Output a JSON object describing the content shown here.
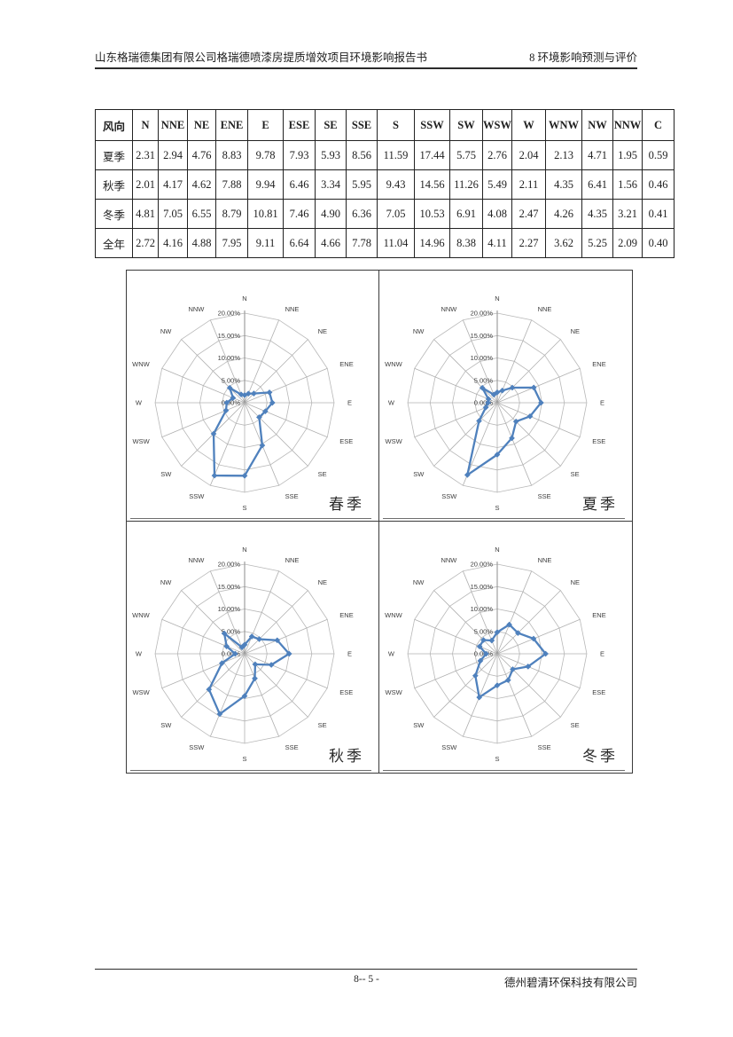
{
  "header": {
    "left": "山东格瑞德集团有限公司格瑞德喷漆房提质增效项目环境影响报告书",
    "right": "8 环境影响预测与评价"
  },
  "footer": {
    "page": "8-- 5 -",
    "company": "德州碧清环保科技有限公司"
  },
  "table": {
    "corner": "风向",
    "columns": [
      "N",
      "NNE",
      "NE",
      "ENE",
      "E",
      "ESE",
      "SE",
      "SSE",
      "S",
      "SSW",
      "SW",
      "WSW",
      "W",
      "WNW",
      "NW",
      "NNW",
      "C"
    ],
    "rows": [
      {
        "label": "夏季",
        "values": [
          "2.31",
          "2.94",
          "4.76",
          "8.83",
          "9.78",
          "7.93",
          "5.93",
          "8.56",
          "11.59",
          "17.44",
          "5.75",
          "2.76",
          "2.04",
          "2.13",
          "4.71",
          "1.95",
          "0.59"
        ]
      },
      {
        "label": "秋季",
        "values": [
          "2.01",
          "4.17",
          "4.62",
          "7.88",
          "9.94",
          "6.46",
          "3.34",
          "5.95",
          "9.43",
          "14.56",
          "11.26",
          "5.49",
          "2.11",
          "4.35",
          "6.41",
          "1.56",
          "0.46"
        ]
      },
      {
        "label": "冬季",
        "values": [
          "4.81",
          "7.05",
          "6.55",
          "8.79",
          "10.81",
          "7.46",
          "4.90",
          "6.36",
          "7.05",
          "10.53",
          "6.91",
          "4.08",
          "2.47",
          "4.26",
          "4.35",
          "3.21",
          "0.41"
        ]
      },
      {
        "label": "全年",
        "values": [
          "2.72",
          "4.16",
          "4.88",
          "7.95",
          "9.11",
          "6.64",
          "4.66",
          "7.78",
          "11.04",
          "14.96",
          "8.38",
          "4.11",
          "2.27",
          "3.62",
          "5.25",
          "2.09",
          "0.40"
        ]
      }
    ]
  },
  "chart_data": [
    {
      "type": "radar",
      "title": "春季",
      "categories": [
        "N",
        "NNE",
        "NE",
        "ENE",
        "E",
        "ESE",
        "SE",
        "SSE",
        "S",
        "SSW",
        "SW",
        "WSW",
        "W",
        "WNW",
        "NW",
        "NNW"
      ],
      "values": [
        1.7,
        2.2,
        2.9,
        6.0,
        6.2,
        5.0,
        4.6,
        10.3,
        16.3,
        17.6,
        9.8,
        4.5,
        4.0,
        2.8,
        4.7,
        2.0
      ],
      "ring_labels": [
        "0.00%",
        "5.00%",
        "10.00%",
        "15.00%",
        "20.00%"
      ],
      "rmax": 20,
      "legend_position": "none",
      "grid": true
    },
    {
      "type": "radar",
      "title": "夏季",
      "categories": [
        "N",
        "NNE",
        "NE",
        "ENE",
        "E",
        "ESE",
        "SE",
        "SSE",
        "S",
        "SSW",
        "SW",
        "WSW",
        "W",
        "WNW",
        "NW",
        "NNW"
      ],
      "values": [
        2.31,
        2.94,
        4.76,
        8.83,
        9.78,
        7.93,
        5.93,
        8.56,
        11.59,
        17.44,
        5.75,
        2.76,
        2.04,
        2.13,
        4.71,
        1.95
      ],
      "ring_labels": [
        "0.00%",
        "5.00%",
        "10.00%",
        "15.00%",
        "20.00%"
      ],
      "rmax": 20,
      "legend_position": "none",
      "grid": true
    },
    {
      "type": "radar",
      "title": "秋季",
      "categories": [
        "N",
        "NNE",
        "NE",
        "ENE",
        "E",
        "ESE",
        "SE",
        "SSE",
        "S",
        "SSW",
        "SW",
        "WSW",
        "W",
        "WNW",
        "NW",
        "NNW"
      ],
      "values": [
        2.01,
        4.17,
        4.62,
        7.88,
        9.94,
        6.46,
        3.34,
        5.95,
        9.43,
        14.56,
        11.26,
        5.49,
        2.11,
        4.35,
        6.41,
        1.56
      ],
      "ring_labels": [
        "0.00%",
        "5.00%",
        "10.00%",
        "15.00%",
        "20.00%"
      ],
      "rmax": 20,
      "legend_position": "none",
      "grid": true
    },
    {
      "type": "radar",
      "title": "冬季",
      "categories": [
        "N",
        "NNE",
        "NE",
        "ENE",
        "E",
        "ESE",
        "SE",
        "SSE",
        "S",
        "SSW",
        "SW",
        "WSW",
        "W",
        "WNW",
        "NW",
        "NNW"
      ],
      "values": [
        4.81,
        7.05,
        6.55,
        8.79,
        10.81,
        7.46,
        4.9,
        6.36,
        7.05,
        10.53,
        6.91,
        4.08,
        2.47,
        4.26,
        4.35,
        3.21
      ],
      "ring_labels": [
        "0.00%",
        "5.00%",
        "10.00%",
        "15.00%",
        "20.00%"
      ],
      "rmax": 20,
      "legend_position": "none",
      "grid": true
    }
  ],
  "colors": {
    "series": "#4f81bd",
    "ring": "#b8b8b8",
    "spoke": "#b0b0b0",
    "axis": "#8c8c8c",
    "chart_text": "#3d3d3d",
    "text": "#1f1f1f",
    "border": "#3a3a3a"
  }
}
